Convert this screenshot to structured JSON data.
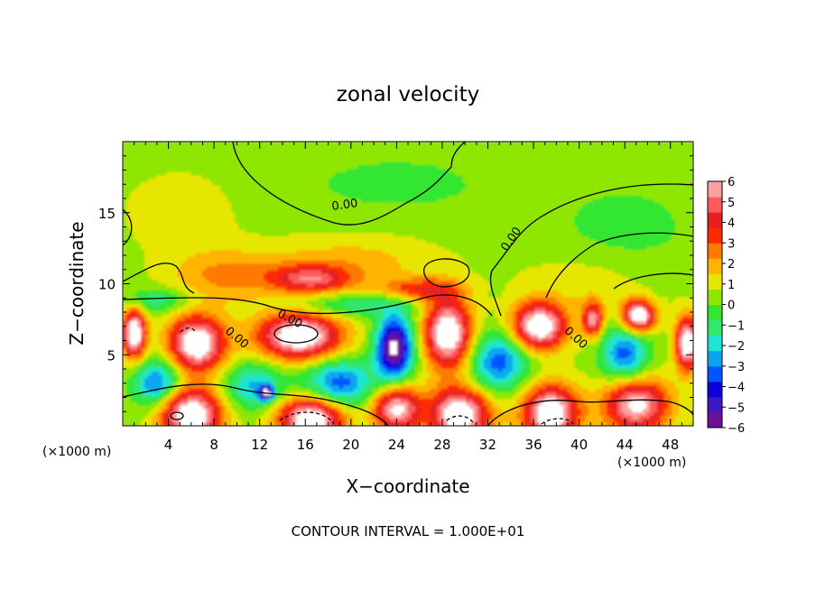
{
  "chart_data": {
    "type": "heatmap",
    "title": "zonal velocity",
    "xlabel": "X−coordinate",
    "ylabel": "Z−coordinate",
    "x_unit_label": "(×1000 m)",
    "x_unit_label_right": "(×1000 m)",
    "footer": "CONTOUR INTERVAL = 1.000E+01",
    "xlim": [
      0,
      50
    ],
    "ylim": [
      0,
      20
    ],
    "x_ticks": [
      4,
      8,
      12,
      16,
      20,
      24,
      28,
      32,
      36,
      40,
      44,
      48
    ],
    "y_ticks": [
      5,
      10,
      15
    ],
    "colorbar": {
      "ticks": [
        "6",
        "5",
        "4",
        "3",
        "2",
        "1",
        "0",
        "−1",
        "−2",
        "−3",
        "−4",
        "−5",
        "−6"
      ],
      "range": [
        -6,
        6
      ],
      "colors": [
        "#6e1199",
        "#3d19c4",
        "#0c00de",
        "#0055ff",
        "#0aa5f0",
        "#1ee6d2",
        "#33e670",
        "#33e633",
        "#8fe600",
        "#e6e600",
        "#ffb400",
        "#ff7a00",
        "#ff2a00",
        "#e62020",
        "#ff5a5a",
        "#ff9f9f"
      ]
    },
    "contour_labels": [
      {
        "text": "0.00",
        "x": 19.5,
        "z": 15.3
      },
      {
        "text": "0.00",
        "x": 34.3,
        "z": 13.0
      },
      {
        "text": "0.00",
        "x": 14.5,
        "z": 7.3
      },
      {
        "text": "0.00",
        "x": 9.8,
        "z": 6.0
      },
      {
        "text": "0.00",
        "x": 39.5,
        "z": 6.0
      }
    ],
    "features": [
      {
        "x": 1.0,
        "z": 6.5,
        "value": 7,
        "rx": 1.0,
        "rz": 1.7
      },
      {
        "x": 6.5,
        "z": 5.8,
        "value": 7,
        "rx": 2.4,
        "rz": 1.9
      },
      {
        "x": 15.5,
        "z": 6.3,
        "value": 7,
        "rx": 3.6,
        "rz": 1.6
      },
      {
        "x": 23.8,
        "z": 5.5,
        "value": -7,
        "rx": 1.6,
        "rz": 2.2
      },
      {
        "x": 28.5,
        "z": 6.5,
        "value": 7,
        "rx": 2.0,
        "rz": 2.4
      },
      {
        "x": 36.5,
        "z": 7.0,
        "value": 7,
        "rx": 2.3,
        "rz": 1.6
      },
      {
        "x": 41.2,
        "z": 7.5,
        "value": 5,
        "rx": 0.9,
        "rz": 1.2
      },
      {
        "x": 45.2,
        "z": 7.7,
        "value": 7,
        "rx": 1.4,
        "rz": 1.1
      },
      {
        "x": 49.5,
        "z": 5.8,
        "value": 7,
        "rx": 1.0,
        "rz": 1.8
      },
      {
        "x": 3.0,
        "z": 3.0,
        "value": -4,
        "rx": 2.0,
        "rz": 1.6
      },
      {
        "x": 11.5,
        "z": 2.8,
        "value": -3,
        "rx": 2.5,
        "rz": 1.6
      },
      {
        "x": 19.0,
        "z": 3.0,
        "value": -4,
        "rx": 3.0,
        "rz": 1.7
      },
      {
        "x": 12.6,
        "z": 2.3,
        "value": -6,
        "rx": 0.6,
        "rz": 0.5
      },
      {
        "x": 33.0,
        "z": 4.5,
        "value": -4,
        "rx": 2.5,
        "rz": 2.0
      },
      {
        "x": 44.0,
        "z": 5.0,
        "value": -4,
        "rx": 2.0,
        "rz": 2.0
      },
      {
        "x": 6.0,
        "z": 0.8,
        "value": 7,
        "rx": 2.6,
        "rz": 1.8
      },
      {
        "x": 16.5,
        "z": 0.5,
        "value": 7,
        "rx": 2.8,
        "rz": 1.5
      },
      {
        "x": 24.0,
        "z": 1.2,
        "value": 6,
        "rx": 2.0,
        "rz": 1.6
      },
      {
        "x": 29.5,
        "z": 0.8,
        "value": 7,
        "rx": 2.6,
        "rz": 1.8
      },
      {
        "x": 37.5,
        "z": 0.9,
        "value": 7,
        "rx": 2.4,
        "rz": 1.9
      },
      {
        "x": 45.0,
        "z": 1.5,
        "value": 6,
        "rx": 2.8,
        "rz": 1.9
      },
      {
        "x": 3.0,
        "z": 8.8,
        "value": -2,
        "rx": 3.0,
        "rz": 0.8
      },
      {
        "x": 20.0,
        "z": 8.5,
        "value": -2,
        "rx": 5.0,
        "rz": 0.8
      },
      {
        "x": 16.5,
        "z": 10.3,
        "value": 4,
        "rx": 3.5,
        "rz": 1.0
      },
      {
        "x": 26.0,
        "z": 9.6,
        "value": 3,
        "rx": 3.5,
        "rz": 0.8
      },
      {
        "x": 9.0,
        "z": 10.5,
        "value": 2,
        "rx": 5.0,
        "rz": 1.8
      },
      {
        "x": 20.0,
        "z": 11.5,
        "value": 1.5,
        "rx": 8.0,
        "rz": 2.0
      },
      {
        "x": 5.0,
        "z": 15.0,
        "value": 1,
        "rx": 5.0,
        "rz": 3.0
      },
      {
        "x": 24.0,
        "z": 17.0,
        "value": -0.5,
        "rx": 10.0,
        "rz": 2.5
      },
      {
        "x": 44.0,
        "z": 14.0,
        "value": -0.6,
        "rx": 6.0,
        "rz": 3.0
      },
      {
        "x": 40.0,
        "z": 10.0,
        "value": 0.9,
        "rx": 6.0,
        "rz": 2.0
      }
    ]
  }
}
